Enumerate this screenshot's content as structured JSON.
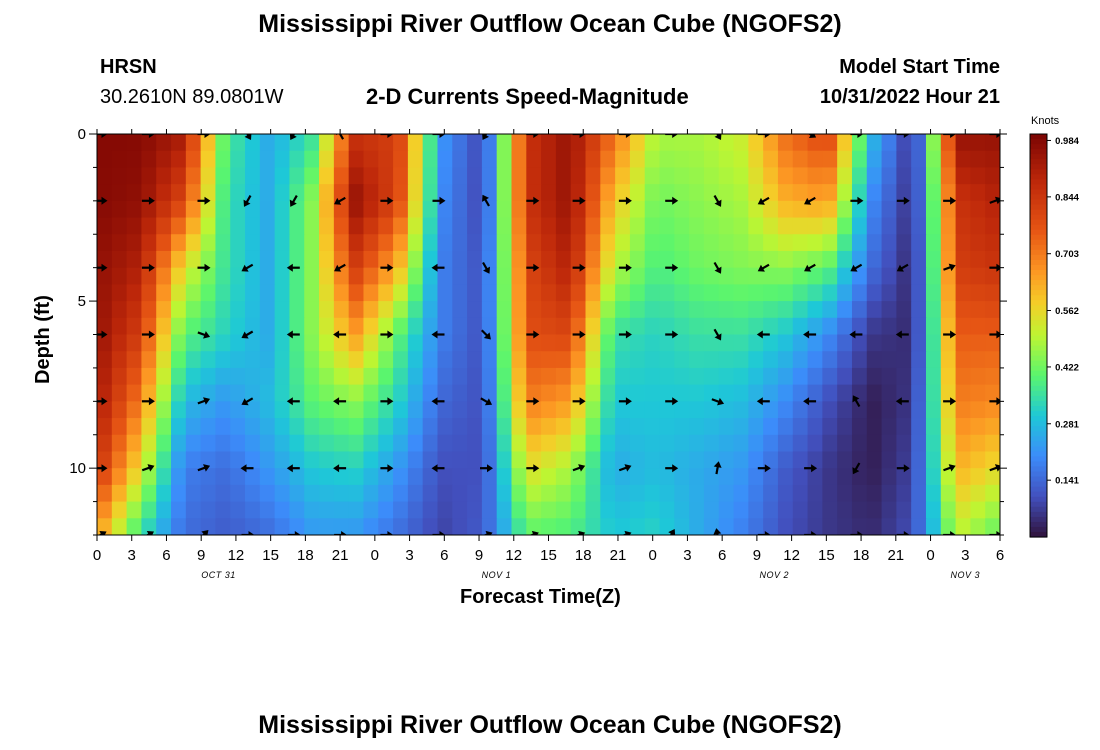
{
  "title": "Mississippi River Outflow Ocean Cube (NGOFS2)",
  "title_bottom": "Mississippi River Outflow Ocean Cube (NGOFS2)",
  "station": {
    "id": "HRSN",
    "coords": "30.2610N  89.0801W"
  },
  "subtitle": "2-D Currents Speed-Magnitude",
  "model_start": {
    "label": "Model Start Time",
    "value": "10/31/2022 Hour 21"
  },
  "chart_data": {
    "type": "heatmap",
    "title": "2-D Currents Speed-Magnitude",
    "xlabel": "Forecast Time(Z)",
    "ylabel": "Depth (ft)",
    "x_hours": [
      0,
      3,
      6,
      9,
      12,
      15,
      18,
      21,
      24,
      27,
      30,
      33,
      36,
      39,
      42,
      45,
      48,
      51,
      54,
      57,
      60,
      63,
      66,
      69,
      72,
      75,
      78
    ],
    "x_tick_labels": [
      "0",
      "3",
      "6",
      "9",
      "12",
      "15",
      "18",
      "21",
      "0",
      "3",
      "6",
      "9",
      "12",
      "15",
      "18",
      "21",
      "0",
      "3",
      "6",
      "9",
      "12",
      "15",
      "18",
      "21",
      "0",
      "3",
      "6"
    ],
    "x_date_labels": [
      {
        "label": "OCT 31",
        "hour": 10.5
      },
      {
        "label": "NOV 1",
        "hour": 34.5
      },
      {
        "label": "NOV 2",
        "hour": 58.5
      },
      {
        "label": "NOV 3",
        "hour": 75
      }
    ],
    "y_ticks": [
      0,
      5,
      10
    ],
    "y_tick_labels": [
      "0",
      "5",
      "10"
    ],
    "y_range": [
      0,
      12
    ],
    "x_range": [
      0,
      78
    ],
    "colorbar": {
      "unit": "Knots",
      "labels": [
        "0.984",
        "0.844",
        "0.703",
        "0.562",
        "0.422",
        "0.281",
        "0.141"
      ],
      "min": 0.0,
      "max": 1.0
    },
    "depths_ft": [
      0,
      2,
      4,
      6,
      8,
      10,
      12
    ],
    "speed_knots": [
      [
        0.98,
        0.98,
        0.92,
        0.38,
        0.25,
        0.35,
        0.85,
        0.82,
        0.22,
        0.08,
        0.85,
        0.95,
        0.72,
        0.48,
        0.48,
        0.52,
        0.72,
        0.8,
        0.28,
        0.04,
        0.95,
        0.95
      ],
      [
        0.98,
        0.96,
        0.8,
        0.35,
        0.25,
        0.45,
        0.95,
        0.8,
        0.2,
        0.08,
        0.85,
        0.95,
        0.6,
        0.42,
        0.45,
        0.48,
        0.62,
        0.65,
        0.2,
        0.04,
        0.85,
        0.9
      ],
      [
        0.96,
        0.9,
        0.55,
        0.35,
        0.25,
        0.45,
        0.82,
        0.62,
        0.18,
        0.1,
        0.8,
        0.9,
        0.5,
        0.38,
        0.42,
        0.44,
        0.45,
        0.4,
        0.15,
        0.03,
        0.82,
        0.85
      ],
      [
        0.95,
        0.82,
        0.4,
        0.32,
        0.25,
        0.45,
        0.65,
        0.4,
        0.18,
        0.1,
        0.78,
        0.8,
        0.35,
        0.32,
        0.35,
        0.35,
        0.3,
        0.2,
        0.06,
        0.04,
        0.75,
        0.75
      ],
      [
        0.92,
        0.7,
        0.28,
        0.22,
        0.28,
        0.4,
        0.45,
        0.32,
        0.14,
        0.1,
        0.7,
        0.65,
        0.3,
        0.3,
        0.3,
        0.28,
        0.2,
        0.1,
        0.02,
        0.06,
        0.7,
        0.68
      ],
      [
        0.85,
        0.55,
        0.18,
        0.15,
        0.22,
        0.3,
        0.32,
        0.22,
        0.1,
        0.1,
        0.55,
        0.48,
        0.25,
        0.28,
        0.25,
        0.22,
        0.12,
        0.06,
        0.02,
        0.08,
        0.62,
        0.55
      ],
      [
        0.65,
        0.35,
        0.15,
        0.12,
        0.15,
        0.22,
        0.22,
        0.15,
        0.08,
        0.12,
        0.4,
        0.38,
        0.3,
        0.32,
        0.25,
        0.18,
        0.1,
        0.06,
        0.04,
        0.1,
        0.5,
        0.4
      ]
    ],
    "arrow_hours": [
      0.3,
      4.4,
      9.2,
      13.0,
      17.0,
      21.0,
      25.0,
      29.5,
      33.6,
      37.6,
      41.6,
      45.6,
      49.6,
      53.6,
      57.6,
      61.6,
      65.6,
      69.6,
      73.6,
      77.6
    ],
    "arrow_depths_ft": [
      0,
      2,
      4,
      6,
      8,
      10,
      12
    ],
    "arrow_dir_deg_ccw_from_east": [
      [
        0,
        0,
        0,
        -60,
        -120,
        120,
        0,
        0,
        -120,
        0,
        0,
        0,
        0,
        -60,
        0,
        -30,
        0,
        0,
        0,
        0
      ],
      [
        0,
        0,
        0,
        -120,
        -120,
        -150,
        0,
        0,
        120,
        0,
        0,
        0,
        0,
        -60,
        -150,
        -150,
        0,
        0,
        0,
        20
      ],
      [
        0,
        0,
        0,
        -150,
        180,
        -150,
        0,
        180,
        -60,
        0,
        0,
        0,
        0,
        -60,
        -150,
        -150,
        -150,
        -150,
        20,
        0
      ],
      [
        0,
        0,
        -20,
        -150,
        180,
        180,
        0,
        180,
        -45,
        0,
        0,
        0,
        0,
        -60,
        180,
        180,
        180,
        180,
        0,
        0
      ],
      [
        0,
        0,
        20,
        -150,
        180,
        180,
        0,
        180,
        -30,
        0,
        0,
        0,
        0,
        -20,
        180,
        180,
        120,
        180,
        0,
        0
      ],
      [
        0,
        20,
        20,
        180,
        180,
        180,
        0,
        180,
        0,
        0,
        20,
        20,
        0,
        80,
        0,
        0,
        -120,
        0,
        20,
        20
      ],
      [
        30,
        30,
        45,
        0,
        0,
        0,
        0,
        0,
        20,
        20,
        20,
        20,
        60,
        100,
        0,
        0,
        0,
        0,
        0,
        0
      ]
    ]
  }
}
